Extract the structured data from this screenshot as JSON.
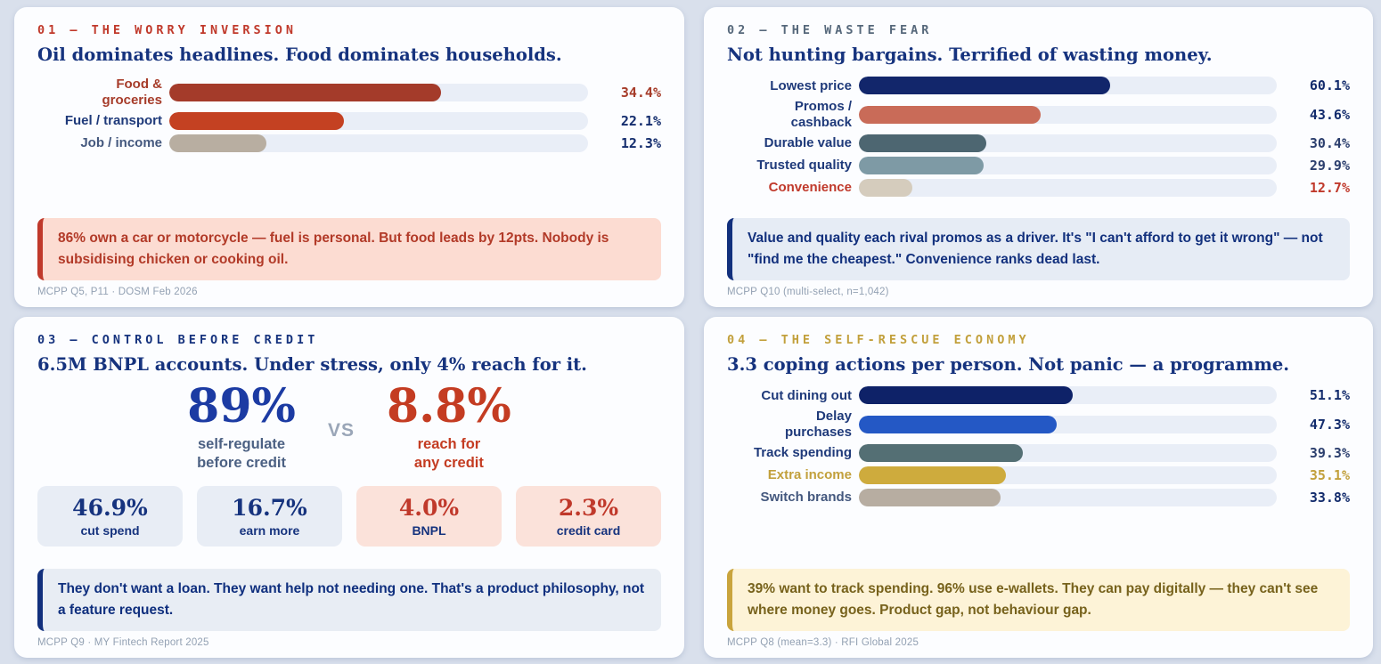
{
  "page": {
    "background": "#d9e0ec",
    "panel_background": "#fcfdff"
  },
  "chart_data": [
    {
      "type": "bar",
      "orientation": "horizontal",
      "kicker": "01 — THE WORRY INVERSION",
      "kicker_color": "#c0392b",
      "title": "Oil dominates headlines. Food dominates households.",
      "unit": "%",
      "categories": [
        "Food &\ngroceries",
        "Fuel / transport",
        "Job / income"
      ],
      "values": [
        34.4,
        22.1,
        12.3
      ],
      "xmax": 53,
      "bar_colors": [
        "#a43b2a",
        "#c44122",
        "#b8aea1"
      ],
      "label_colors": [
        "#a63c2a",
        "#1f3a7a",
        "#44587e"
      ],
      "value_colors": [
        "#a63c2a",
        "#132c6d",
        "#132c6d"
      ],
      "value_weights": [
        800,
        800,
        800
      ],
      "track_color": "#e9eef7",
      "callout": {
        "text": "86% own a car or motorcycle — fuel is personal. But food leads by 12pts. Nobody is subsidising chicken or cooking oil."
      },
      "source": "MCPP Q5, P11 · DOSM Feb 2026"
    },
    {
      "type": "bar",
      "orientation": "horizontal",
      "kicker": "02 — THE WASTE FEAR",
      "kicker_color": "#56687b",
      "title": "Not hunting bargains. Terrified of wasting money.",
      "unit": "%",
      "categories": [
        "Lowest price",
        "Promos /\ncashback",
        "Durable value",
        "Trusted quality",
        "Convenience"
      ],
      "values": [
        60.1,
        43.6,
        30.4,
        29.9,
        12.7
      ],
      "xmax": 100,
      "bar_colors": [
        "#12266b",
        "#c96b58",
        "#4d6671",
        "#7e9aa5",
        "#d5ccbd"
      ],
      "label_colors": [
        "#1f3a7a",
        "#1f3a7a",
        "#1f3a7a",
        "#1f3a7a",
        "#c0392b"
      ],
      "value_colors": [
        "#132c6d",
        "#132c6d",
        "#2c3f6e",
        "#2c3f6e",
        "#c0392b"
      ],
      "value_weights": [
        800,
        800,
        600,
        600,
        700
      ],
      "track_color": "#e9eef7",
      "callout": {
        "text": "Value and quality each rival promos as a driver. It's \"I can't afford to get it wrong\" — not \"find me the cheapest.\" Convenience ranks dead last."
      },
      "source": "MCPP Q10 (multi-select, n=1,042)"
    },
    {
      "type": "stat",
      "kicker": "03 — CONTROL BEFORE CREDIT",
      "kicker_color": "#16337e",
      "title": "6.5M BNPL accounts. Under stress, only 4% reach for it.",
      "big_stats": [
        {
          "value": "89%",
          "label": "self-regulate\nbefore credit",
          "color": "#1c3ba3"
        },
        {
          "value": "8.8%",
          "label": "reach for\nany credit",
          "color": "#c43c22"
        }
      ],
      "vs_label": "VS",
      "stat_boxes": [
        {
          "value": "46.9%",
          "label": "cut spend",
          "theme": "blue"
        },
        {
          "value": "16.7%",
          "label": "earn more",
          "theme": "blue"
        },
        {
          "value": "4.0%",
          "label": "BNPL",
          "theme": "pink"
        },
        {
          "value": "2.3%",
          "label": "credit card",
          "theme": "pink"
        }
      ],
      "callout": {
        "text": "They don't want a loan. They want help not needing one. That's a product philosophy, not a feature request."
      },
      "source": "MCPP Q9 · MY Fintech Report 2025"
    },
    {
      "type": "bar",
      "orientation": "horizontal",
      "kicker": "04 — THE SELF-RESCUE ECONOMY",
      "kicker_color": "#c2a03c",
      "title": "3.3 coping actions per person. Not panic — a programme.",
      "unit": "%",
      "categories": [
        "Cut dining out",
        "Delay\npurchases",
        "Track spending",
        "Extra income",
        "Switch brands"
      ],
      "values": [
        51.1,
        47.3,
        39.3,
        35.1,
        33.8
      ],
      "xmax": 100,
      "bar_colors": [
        "#0e2268",
        "#2458c5",
        "#546f74",
        "#ceab3d",
        "#b7ada1"
      ],
      "label_colors": [
        "#1f3a7a",
        "#1f3a7a",
        "#1f3a7a",
        "#c2a03c",
        "#44587e"
      ],
      "value_colors": [
        "#132c6d",
        "#132c6d",
        "#2c3f6e",
        "#c2a03c",
        "#132c6d"
      ],
      "value_weights": [
        800,
        800,
        600,
        700,
        800
      ],
      "track_color": "#e9eef7",
      "callout": {
        "text": "39% want to track spending. 96% use e-wallets. They can pay digitally — they can't see where money goes. Product gap, not behaviour gap."
      },
      "source": "MCPP Q8 (mean=3.3) · RFI Global 2025"
    }
  ]
}
